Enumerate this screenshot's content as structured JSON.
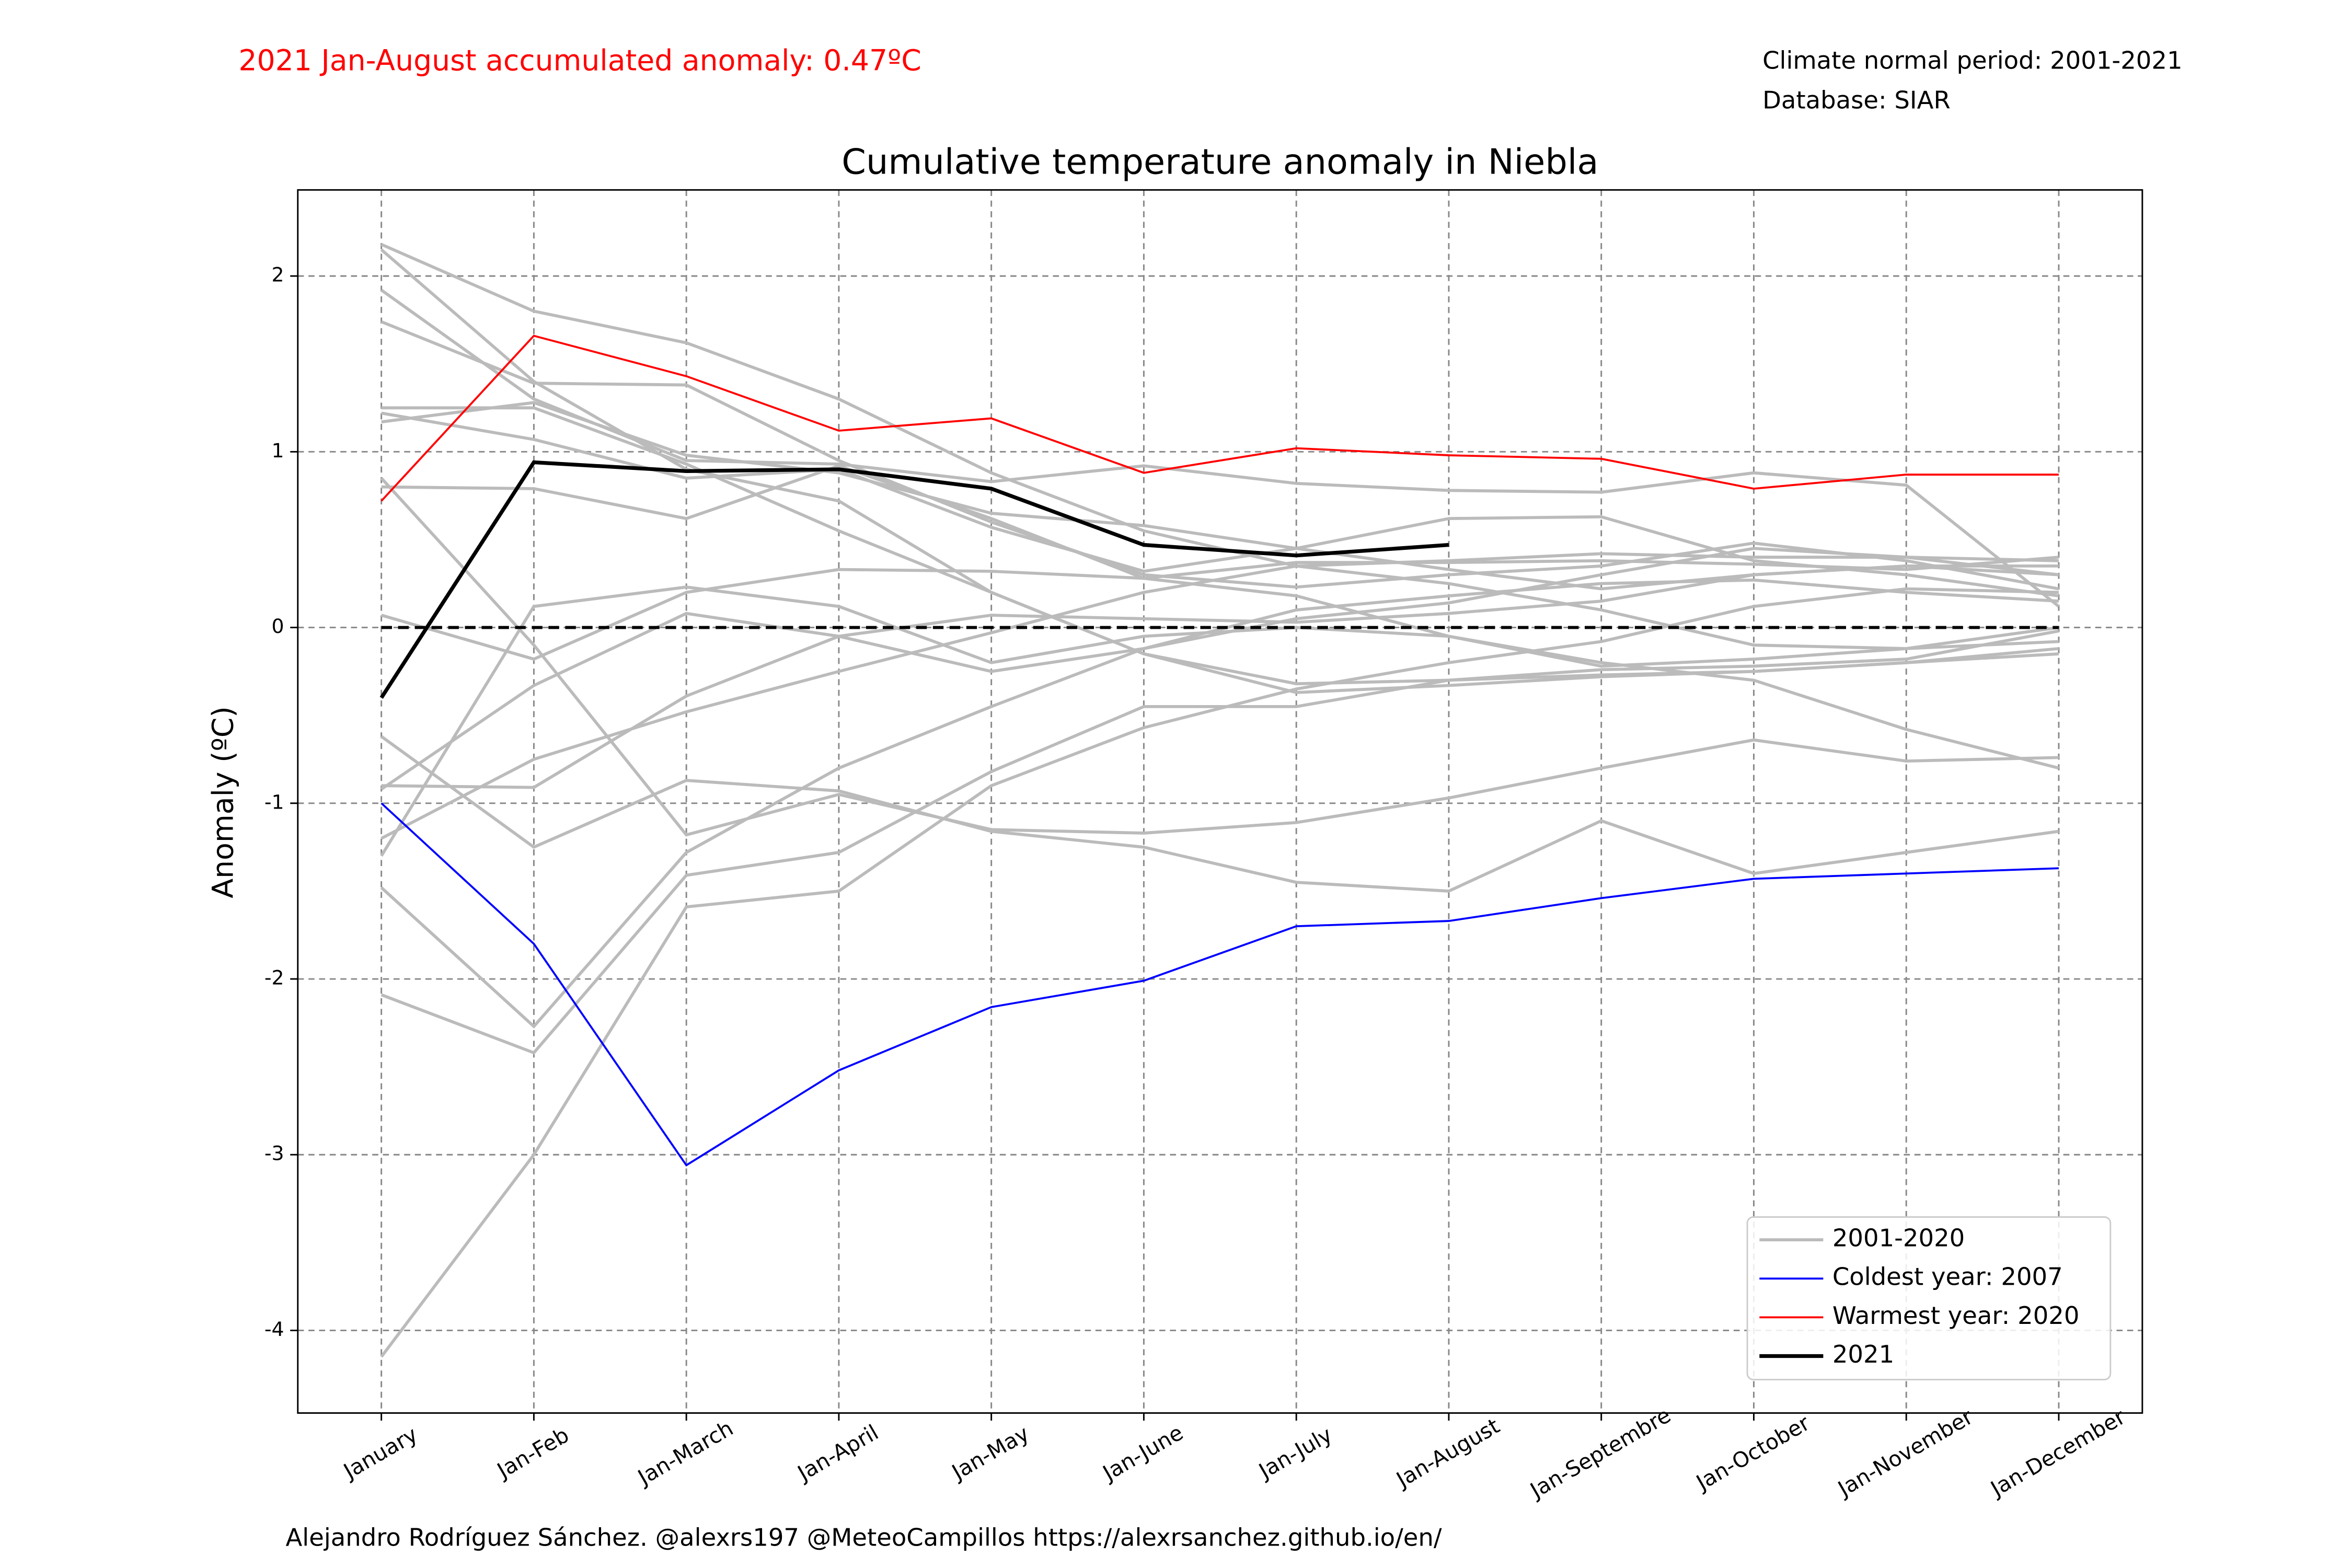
{
  "chart_data": {
    "type": "line",
    "title": "Cumulative temperature anomaly in Niebla",
    "annotation": "2021 Jan-August accumulated anomaly: 0.47ºC",
    "notes": [
      "Climate normal period: 2001-2021",
      "Database: SIAR"
    ],
    "credit": "Alejandro Rodríguez Sánchez. @alexrs197 @MeteoCampillos   https://alexrsanchez.github.io/en/",
    "ylabel": "Anomaly (ºC)",
    "categories": [
      "January",
      "Jan-Feb",
      "Jan-March",
      "Jan-April",
      "Jan-May",
      "Jan-June",
      "Jan-July",
      "Jan-August",
      "Jan-Septembre",
      "Jan-October",
      "Jan-November",
      "Jan-December"
    ],
    "ylim": [
      -4.47,
      2.49
    ],
    "yticks": [
      -4,
      -3,
      -2,
      -1,
      0,
      1,
      2
    ],
    "grid": true,
    "hline": 0,
    "legend": "lower right",
    "series": [
      {
        "name": "2001-2020",
        "color": "#bbbbbb",
        "lines": [
          {
            "values": [
              2.18,
              1.8,
              1.62,
              1.3,
              0.88,
              0.55,
              0.35,
              0.25,
              0.1,
              -0.1,
              -0.12,
              0.0
            ]
          },
          {
            "values": [
              2.15,
              1.4,
              0.9,
              0.72,
              0.2,
              -0.15,
              -0.32,
              -0.3,
              -0.27,
              -0.25,
              -0.2,
              -0.15
            ]
          },
          {
            "values": [
              1.92,
              1.3,
              0.95,
              0.93,
              0.83,
              0.92,
              0.82,
              0.78,
              0.77,
              0.88,
              0.81,
              0.12
            ]
          },
          {
            "values": [
              1.74,
              1.39,
              1.38,
              0.95,
              0.6,
              0.3,
              0.23,
              0.3,
              0.35,
              0.48,
              0.38,
              0.22
            ]
          },
          {
            "values": [
              1.25,
              1.25,
              0.93,
              0.55,
              0.2,
              -0.15,
              -0.37,
              -0.33,
              -0.28,
              -0.25,
              -0.2,
              -0.12
            ]
          },
          {
            "values": [
              1.22,
              1.07,
              0.85,
              0.9,
              0.57,
              0.32,
              0.45,
              0.62,
              0.63,
              0.38,
              0.3,
              0.18
            ]
          },
          {
            "values": [
              1.17,
              1.28,
              0.98,
              0.88,
              0.65,
              0.58,
              0.45,
              0.33,
              0.22,
              0.3,
              0.35,
              0.35
            ]
          },
          {
            "values": [
              0.85,
              -0.1,
              -1.18,
              -0.95,
              -1.15,
              -1.17,
              -1.11,
              -0.97,
              -0.8,
              -0.64,
              -0.76,
              -0.74
            ]
          },
          {
            "values": [
              0.8,
              0.79,
              0.62,
              0.92,
              0.62,
              0.28,
              0.18,
              -0.05,
              -0.2,
              -0.3,
              -0.58,
              -0.8
            ]
          },
          {
            "values": [
              0.07,
              -0.18,
              0.2,
              0.33,
              0.32,
              0.28,
              0.37,
              0.37,
              0.38,
              0.36,
              0.33,
              0.4
            ]
          },
          {
            "values": [
              -0.62,
              -1.25,
              -0.87,
              -0.93,
              -1.16,
              -1.25,
              -1.45,
              -1.5,
              -1.1,
              -1.4,
              -1.28,
              -1.16
            ]
          },
          {
            "values": [
              -0.9,
              -0.91,
              -0.39,
              -0.05,
              0.07,
              0.05,
              0.03,
              0.08,
              0.15,
              0.3,
              0.35,
              0.3
            ]
          },
          {
            "values": [
              -0.92,
              -0.33,
              0.08,
              -0.05,
              -0.25,
              -0.12,
              0.05,
              0.14,
              0.3,
              0.45,
              0.4,
              0.3
            ]
          },
          {
            "values": [
              -1.2,
              -0.75,
              -0.48,
              -0.25,
              -0.03,
              0.2,
              0.35,
              0.38,
              0.42,
              0.4,
              0.4,
              0.38
            ]
          },
          {
            "values": [
              -1.3,
              0.12,
              0.23,
              0.12,
              -0.2,
              -0.05,
              0.0,
              -0.05,
              -0.22,
              -0.18,
              -0.12,
              -0.08
            ]
          },
          {
            "values": [
              -1.48,
              -2.27,
              -1.28,
              -0.8,
              -0.45,
              -0.12,
              0.1,
              0.18,
              0.25,
              0.27,
              0.2,
              0.15
            ]
          },
          {
            "values": [
              -2.09,
              -2.42,
              -1.41,
              -1.28,
              -0.82,
              -0.45,
              -0.45,
              -0.3,
              -0.24,
              -0.22,
              -0.18,
              -0.02
            ]
          },
          {
            "values": [
              -4.15,
              -3.0,
              -1.59,
              -1.5,
              -0.9,
              -0.57,
              -0.35,
              -0.2,
              -0.08,
              0.12,
              0.22,
              0.2
            ]
          }
        ]
      },
      {
        "name": "Coldest year: 2007",
        "color": "#0000ff",
        "values": [
          -1.0,
          -1.8,
          -3.06,
          -2.52,
          -2.16,
          -2.01,
          -1.7,
          -1.67,
          -1.54,
          -1.43,
          -1.4,
          -1.37
        ]
      },
      {
        "name": "Warmest year: 2020",
        "color": "#ff0000",
        "values": [
          0.72,
          1.66,
          1.43,
          1.12,
          1.19,
          0.88,
          1.02,
          0.98,
          0.96,
          0.79,
          0.87,
          0.87
        ]
      },
      {
        "name": "2021",
        "color": "#000000",
        "values": [
          -0.4,
          0.94,
          0.89,
          0.9,
          0.79,
          0.47,
          0.41,
          0.47,
          null,
          null,
          null,
          null
        ]
      }
    ]
  }
}
